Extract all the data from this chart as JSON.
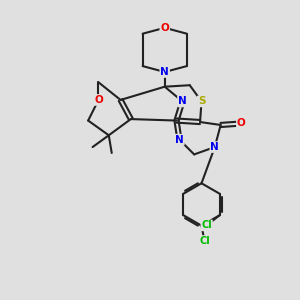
{
  "background_color": "#e0e0e0",
  "bond_color": "#222222",
  "bond_width": 1.5,
  "atom_colors": {
    "N": "#0000ee",
    "O": "#ee0000",
    "S": "#aaaa00",
    "Cl": "#00bb00",
    "C": "#222222"
  },
  "figsize": [
    3.0,
    3.0
  ],
  "dpi": 100
}
